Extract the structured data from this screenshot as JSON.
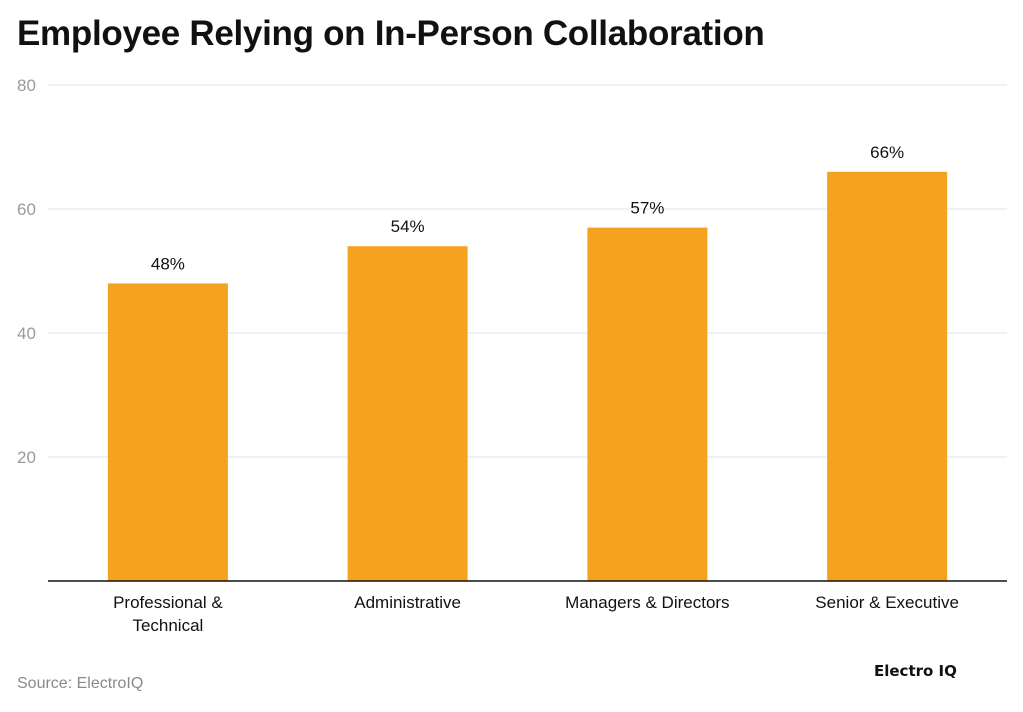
{
  "header": {
    "title": "Employee Relying on In-Person Collaboration"
  },
  "chart_data": {
    "type": "bar",
    "title": "Employee Relying on In-Person Collaboration",
    "xlabel": "",
    "ylabel": "",
    "categories": [
      [
        "Professional &",
        "Technical"
      ],
      [
        "Administrative"
      ],
      [
        "Managers & Directors"
      ],
      [
        "Senior & Executive"
      ]
    ],
    "values": [
      48,
      54,
      57,
      66
    ],
    "data_labels": [
      "48%",
      "54%",
      "57%",
      "66%"
    ],
    "yticks": [
      20,
      40,
      60,
      80
    ],
    "ylim": [
      0,
      80
    ],
    "grid": true,
    "legend": "none",
    "bar_color": "#f5a31f",
    "grid_color": "#e3e3e3",
    "tick_label_color": "#9a9a9a"
  },
  "footer": {
    "source": "Source: ElectroIQ",
    "brand": "Electro IQ"
  }
}
